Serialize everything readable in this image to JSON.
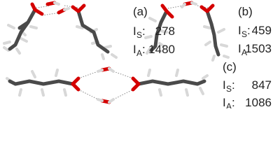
{
  "panels": [
    {
      "label": "(a)",
      "rows": [
        {
          "symbol": "I",
          "subscript": "S",
          "colon": ":",
          "value": "278"
        },
        {
          "symbol": "I",
          "subscript": "A",
          "colon": ":",
          "value": "1480"
        }
      ]
    },
    {
      "label": "(b)",
      "rows": [
        {
          "symbol": "I",
          "subscript": "S",
          "colon": ":",
          "value": "459"
        },
        {
          "symbol": "I",
          "subscript": "A",
          "colon": ":",
          "value": "1503"
        }
      ]
    },
    {
      "label": "(c)",
      "rows": [
        {
          "symbol": "I",
          "subscript": "S",
          "colon": ":",
          "value": "847"
        },
        {
          "symbol": "I",
          "subscript": "A",
          "colon": ":",
          "value": "1086"
        }
      ]
    }
  ]
}
